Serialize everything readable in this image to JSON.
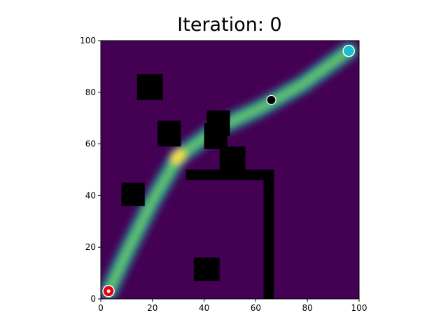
{
  "chart_data": {
    "type": "heatmap",
    "title": "Iteration: 0",
    "xlabel": "",
    "ylabel": "",
    "xlim": [
      0,
      100
    ],
    "ylim": [
      0,
      100
    ],
    "grid": false,
    "xticks": [
      0,
      20,
      40,
      60,
      80,
      100
    ],
    "yticks": [
      0,
      20,
      40,
      60,
      80,
      100
    ],
    "colormap": "viridis",
    "background_color": "#440154",
    "obstacle_color": "#000000",
    "path_density": {
      "description_points": [
        [
          3,
          3
        ],
        [
          11,
          20
        ],
        [
          20,
          38
        ],
        [
          30,
          55
        ],
        [
          45,
          66
        ],
        [
          62,
          74
        ],
        [
          78,
          83
        ],
        [
          96,
          96
        ]
      ],
      "peak": [
        30,
        55
      ]
    },
    "obstacles": [
      {
        "x0": 14,
        "y0": 77,
        "x1": 24,
        "y1": 87
      },
      {
        "x0": 22,
        "y0": 59,
        "x1": 31,
        "y1": 69
      },
      {
        "x0": 41,
        "y0": 63,
        "x1": 50,
        "y1": 73
      },
      {
        "x0": 40,
        "y0": 58,
        "x1": 49,
        "y1": 68
      },
      {
        "x0": 46,
        "y0": 50,
        "x1": 56,
        "y1": 59
      },
      {
        "x0": 33,
        "y0": 46,
        "x1": 67,
        "y1": 50
      },
      {
        "x0": 63,
        "y0": 0,
        "x1": 67,
        "y1": 50
      },
      {
        "x0": 8,
        "y0": 36,
        "x1": 17,
        "y1": 45
      },
      {
        "x0": 36,
        "y0": 7,
        "x1": 46,
        "y1": 16
      }
    ],
    "markers": [
      {
        "name": "start",
        "x": 3,
        "y": 3,
        "color": "#e8000b"
      },
      {
        "name": "waypoint",
        "x": 66,
        "y": 77,
        "color": "#000000"
      },
      {
        "name": "goal",
        "x": 96,
        "y": 96,
        "color": "#17becf"
      }
    ]
  }
}
